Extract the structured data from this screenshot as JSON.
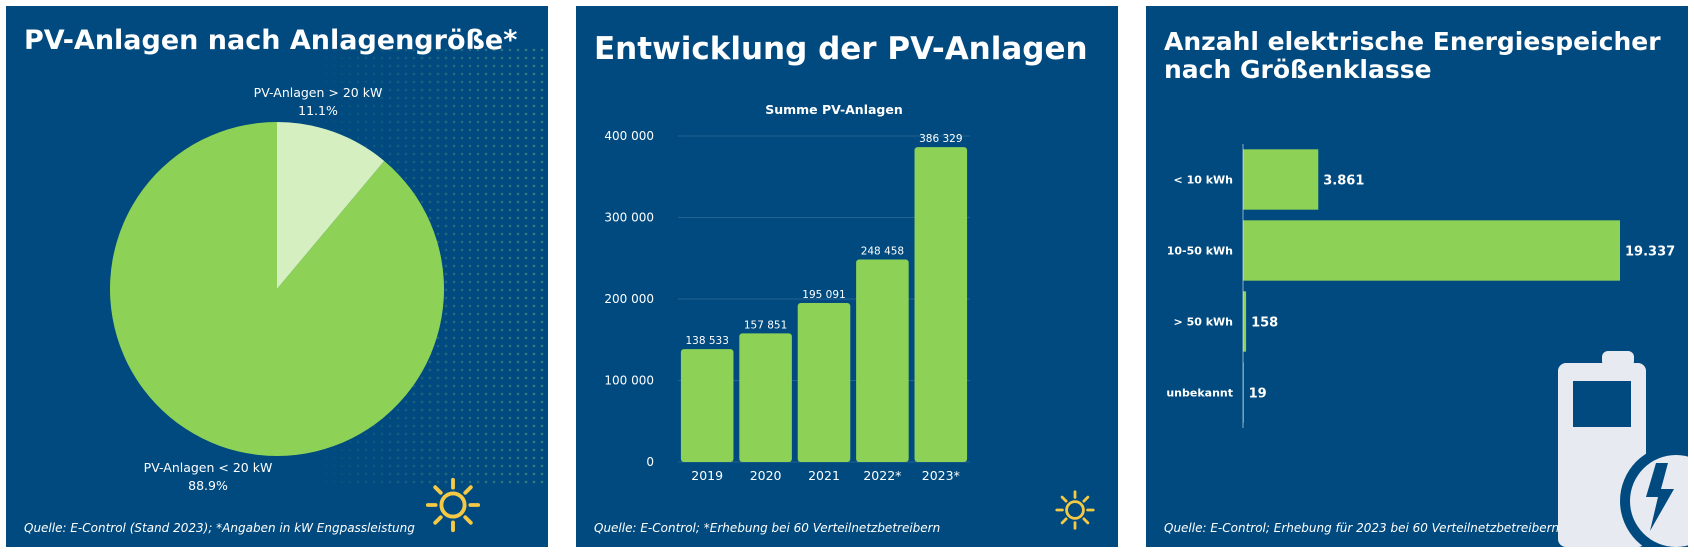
{
  "colors": {
    "background": "#004a7f",
    "bar_green": "#8dd256",
    "pie_light": "#d5efc0",
    "sun_yellow": "#f6c945",
    "battery": "#e8eaf2"
  },
  "panels": [
    {
      "title": "PV-Anlagen nach Anlagengröße*",
      "source": "Quelle: E-Control (Stand 2023); *Angaben in kW Engpassleistung",
      "icon": "sun-icon",
      "chart_data": {
        "type": "pie",
        "slices": [
          {
            "label": "PV-Anlagen > 20 kW",
            "value": 11.1,
            "value_label": "11.1%",
            "color": "#d5efc0"
          },
          {
            "label": "PV-Anlagen < 20 kW",
            "value": 88.9,
            "value_label": "88.9%",
            "color": "#8dd256"
          }
        ]
      }
    },
    {
      "title": "Entwicklung der PV-Anlagen",
      "source": "Quelle: E-Control; *Erhebung bei 60 Verteilnetzbetreibern",
      "icon": "sun-icon",
      "chart_data": {
        "type": "bar",
        "title": "Summe PV-Anlagen",
        "categories": [
          "2019",
          "2020",
          "2021",
          "2022*",
          "2023*"
        ],
        "values": [
          138533,
          157851,
          195091,
          248458,
          386329
        ],
        "value_labels": [
          "138 533",
          "157 851",
          "195 091",
          "248 458",
          "386 329"
        ],
        "ylim": [
          0,
          400000
        ],
        "yticks": [
          0,
          100000,
          200000,
          300000,
          400000
        ],
        "ytick_labels": [
          "0",
          "100 000",
          "200 000",
          "300 000",
          "400 000"
        ],
        "grid": true,
        "color": "#8dd256"
      }
    },
    {
      "title": "Anzahl elektrische Energiespeicher nach Größenklasse",
      "source": "Quelle: E-Control; Erhebung für 2023 bei 60 Verteilnetzbetreibern",
      "icon": "battery-charging-icon",
      "chart_data": {
        "type": "bar",
        "orientation": "horizontal",
        "categories": [
          "< 10 kWh",
          "10-50 kWh",
          "> 50 kWh",
          "unbekannt"
        ],
        "values": [
          3861,
          19337,
          158,
          19
        ],
        "value_labels": [
          "3.861",
          "19.337",
          "158",
          "19"
        ],
        "color": "#8dd256"
      }
    }
  ]
}
